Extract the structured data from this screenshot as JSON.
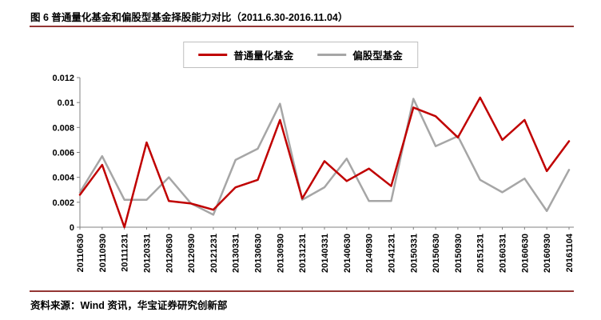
{
  "header": {
    "title": "图 6 普通量化基金和偏股型基金择股能力对比（2011.6.30-2016.11.04）"
  },
  "legend": [
    {
      "label": "普通量化基金",
      "color": "#C00000"
    },
    {
      "label": "偏股型基金",
      "color": "#A6A6A6"
    }
  ],
  "chart_data": {
    "type": "line",
    "title": "图 6 普通量化基金和偏股型基金择股能力对比（2011.6.30-2016.11.04）",
    "categories": [
      "20110630",
      "20110930",
      "20111231",
      "20120331",
      "20120630",
      "20120930",
      "20121231",
      "20130331",
      "20130630",
      "20130930",
      "20131231",
      "20140331",
      "20140630",
      "20140930",
      "20141231",
      "20150331",
      "20150630",
      "20150930",
      "20151231",
      "20160331",
      "20160630",
      "20160930",
      "20161104"
    ],
    "series": [
      {
        "name": "普通量化基金",
        "color": "#C00000",
        "values": [
          0.0026,
          0.005,
          0.0,
          0.0068,
          0.0021,
          0.0019,
          0.0014,
          0.0032,
          0.0038,
          0.0086,
          0.0023,
          0.0053,
          0.0037,
          0.0047,
          0.0033,
          0.0096,
          0.0089,
          0.0072,
          0.0104,
          0.007,
          0.0086,
          0.0045,
          0.0069
        ]
      },
      {
        "name": "偏股型基金",
        "color": "#A6A6A6",
        "values": [
          0.0028,
          0.0057,
          0.0022,
          0.0022,
          0.004,
          0.0019,
          0.001,
          0.0054,
          0.0063,
          0.0099,
          0.0022,
          0.0032,
          0.0055,
          0.0021,
          0.0021,
          0.0103,
          0.0065,
          0.0073,
          0.0038,
          0.0028,
          0.0039,
          0.0013,
          0.0046
        ]
      }
    ],
    "xlabel": "",
    "ylabel": "",
    "ylim": [
      0,
      0.012
    ],
    "ytick_step": 0.002,
    "ytick_labels": [
      "0",
      "0.002",
      "0.004",
      "0.006",
      "0.008",
      "0.01",
      "0.012"
    ],
    "grid": false,
    "legend_position": "top-center",
    "axis_color": "#808080"
  },
  "footer": {
    "source": "资料来源：Wind 资讯，华宝证券研究创新部"
  },
  "colors": {
    "divider": "#943634",
    "series_red": "#C00000",
    "series_gray": "#A6A6A6"
  }
}
